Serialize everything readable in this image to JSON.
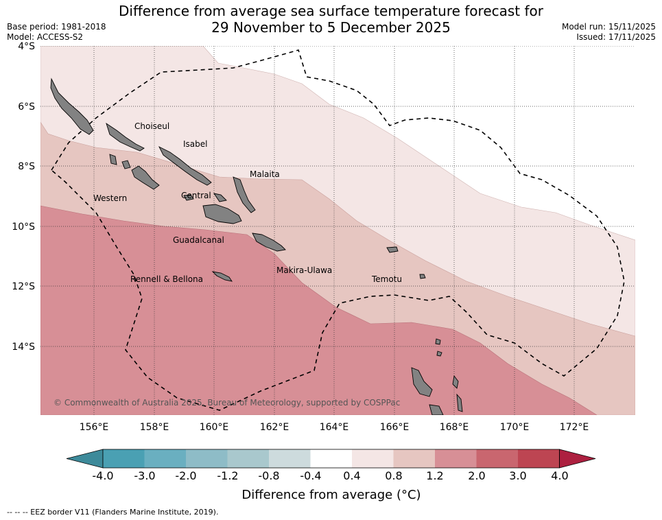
{
  "title": {
    "line1": "Difference from average sea surface temperature forecast for",
    "line2": "29 November to 5 December 2025"
  },
  "header_left": {
    "base_period": "Base period: 1981-2018",
    "model": "Model: ACCESS-S2"
  },
  "header_right": {
    "model_run": "Model run: 15/11/2025",
    "issued": "Issued: 17/11/2025"
  },
  "map": {
    "lat_labels": [
      "4°S",
      "6°S",
      "8°S",
      "10°S",
      "12°S",
      "14°S"
    ],
    "lon_labels": [
      "156°E",
      "158°E",
      "160°E",
      "162°E",
      "164°E",
      "166°E",
      "168°E",
      "170°E",
      "172°E"
    ],
    "region_labels": [
      "Choiseul",
      "Isabel",
      "Malaita",
      "Western",
      "Central",
      "Guadalcanal",
      "Makira-Ulawa",
      "Temotu",
      "Rennell & Bellona"
    ],
    "copyright": "© Commonwealth of Australia 2025, Bureau of Meteorology, supported by COSPPac"
  },
  "colorbar": {
    "tick_labels": [
      "-4.0",
      "-3.0",
      "-2.0",
      "-1.2",
      "-0.8",
      "-0.4",
      "0.4",
      "0.8",
      "1.2",
      "2.0",
      "3.0",
      "4.0"
    ],
    "colors": [
      "#3d8a9a",
      "#4aa0b3",
      "#6aafc0",
      "#8ebcc7",
      "#a9c8cd",
      "#cddbdd",
      "#ffffff",
      "#f4e6e5",
      "#e6c6c1",
      "#d78f96",
      "#c9666f",
      "#bd4552",
      "#ad2040"
    ],
    "label": "Difference from average (°C)"
  },
  "footnote": "-- -- -- EEZ border V11 (Flanders Marine Institute, 2019)."
}
